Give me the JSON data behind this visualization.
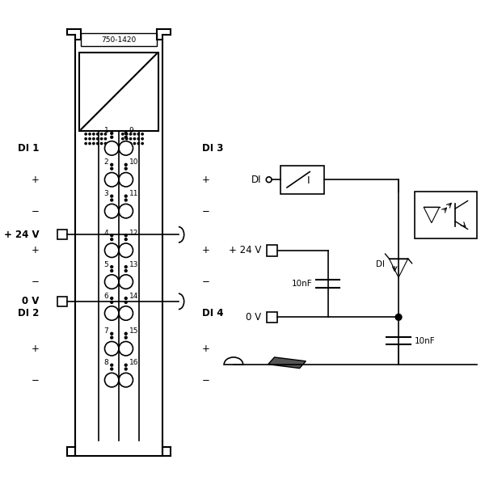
{
  "bg_color": "#ffffff",
  "line_color": "#000000",
  "module_label": "750-1420",
  "left_labels": [
    [
      "DI 1",
      true,
      0
    ],
    [
      "+",
      false,
      1
    ],
    [
      "−",
      false,
      2
    ],
    [
      "+ 24 V",
      true,
      -1
    ],
    [
      "+",
      false,
      3
    ],
    [
      "−",
      false,
      4
    ],
    [
      "0 V",
      true,
      -2
    ],
    [
      "DI 2",
      true,
      5
    ],
    [
      "+",
      false,
      6
    ],
    [
      "−",
      false,
      7
    ]
  ],
  "right_labels": [
    [
      "DI 3",
      true,
      0
    ],
    [
      "+",
      false,
      1
    ],
    [
      "−",
      false,
      2
    ],
    [
      "+",
      false,
      3
    ],
    [
      "−",
      false,
      4
    ],
    [
      "DI 4",
      true,
      5
    ],
    [
      "+",
      false,
      6
    ],
    [
      "−",
      false,
      7
    ]
  ],
  "pin_left": [
    "1",
    "2",
    "3",
    "4",
    "5",
    "6",
    "7",
    "8"
  ],
  "pin_right": [
    "9",
    "10",
    "11",
    "12",
    "13",
    "14",
    "15",
    "16"
  ]
}
